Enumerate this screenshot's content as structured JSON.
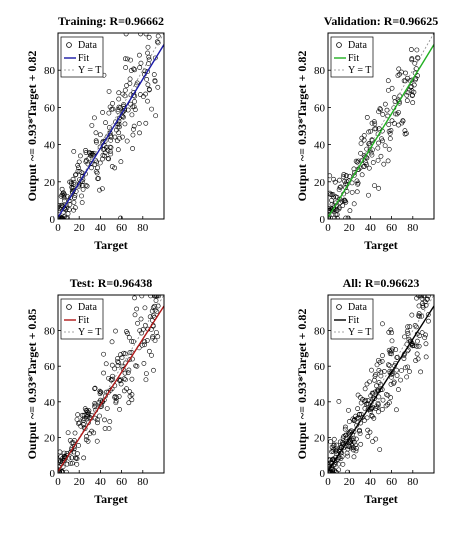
{
  "chart_data": [
    {
      "type": "scatter",
      "title": "Training: R=0.96662",
      "xlabel": "Target",
      "ylabel": "Output ~= 0.93*Target + 0.82",
      "xlim": [
        0,
        100
      ],
      "ylim": [
        0,
        100
      ],
      "xticks": [
        "0",
        "20",
        "40",
        "60",
        "80"
      ],
      "yticks": [
        "0",
        "20",
        "40",
        "60",
        "80"
      ],
      "fit": {
        "slope": 0.93,
        "intercept": 0.82,
        "color": "#1a1aa6"
      },
      "legend": {
        "position": "top-left",
        "entries": [
          "Data",
          "Fit",
          "Y = T"
        ]
      },
      "cloud": {
        "x_range": [
          0,
          95
        ],
        "spread": 9,
        "points": 260
      }
    },
    {
      "type": "scatter",
      "title": "Validation: R=0.96625",
      "xlabel": "Target",
      "ylabel": "Output ~= 0.93*Target + 0.82",
      "xlim": [
        0,
        100
      ],
      "ylim": [
        0,
        100
      ],
      "xticks": [
        "0",
        "20",
        "40",
        "60",
        "80"
      ],
      "yticks": [
        "0",
        "20",
        "40",
        "60",
        "80"
      ],
      "fit": {
        "slope": 0.93,
        "intercept": 0.82,
        "color": "#22b022"
      },
      "legend": {
        "position": "top-left",
        "entries": [
          "Data",
          "Fit",
          "Y = T"
        ]
      },
      "cloud": {
        "x_range": [
          0,
          85
        ],
        "spread": 8,
        "points": 200
      }
    },
    {
      "type": "scatter",
      "title": "Test: R=0.96438",
      "xlabel": "Target",
      "ylabel": "Output ~= 0.93*Target + 0.85",
      "xlim": [
        0,
        100
      ],
      "ylim": [
        0,
        100
      ],
      "xticks": [
        "0",
        "20",
        "40",
        "60",
        "80"
      ],
      "yticks": [
        "0",
        "20",
        "40",
        "60",
        "80"
      ],
      "fit": {
        "slope": 0.93,
        "intercept": 0.85,
        "color": "#b01818"
      },
      "legend": {
        "position": "top-left",
        "entries": [
          "Data",
          "Fit",
          "Y = T"
        ]
      },
      "cloud": {
        "x_range": [
          0,
          95
        ],
        "spread": 9,
        "points": 230
      }
    },
    {
      "type": "scatter",
      "title": "All: R=0.96623",
      "xlabel": "Target",
      "ylabel": "Output ~= 0.93*Target + 0.82",
      "xlim": [
        0,
        100
      ],
      "ylim": [
        0,
        100
      ],
      "xticks": [
        "0",
        "20",
        "40",
        "60",
        "80"
      ],
      "yticks": [
        "0",
        "20",
        "40",
        "60",
        "80"
      ],
      "fit": {
        "slope": 0.93,
        "intercept": 0.82,
        "color": "#000000"
      },
      "legend": {
        "position": "top-left",
        "entries": [
          "Data",
          "Fit",
          "Y = T"
        ]
      },
      "cloud": {
        "x_range": [
          0,
          95
        ],
        "spread": 9,
        "points": 300
      }
    }
  ]
}
